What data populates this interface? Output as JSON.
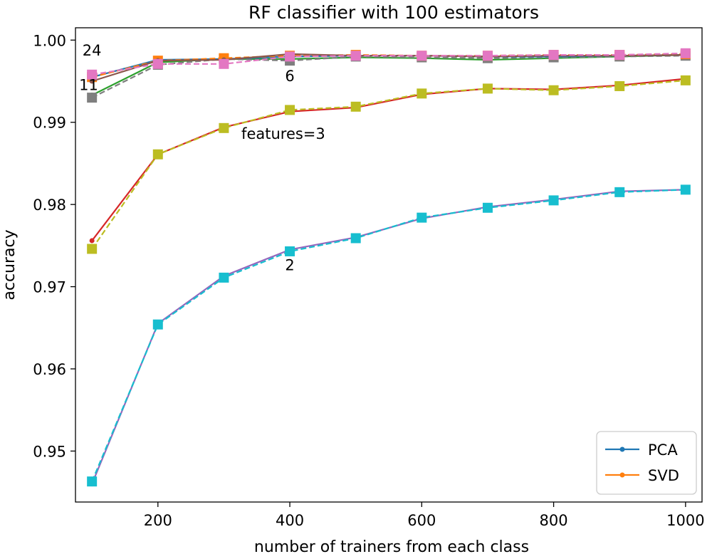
{
  "chart_data": {
    "type": "line",
    "title": "RF classifier with 100 estimators",
    "xlabel": "number of trainers from each class",
    "ylabel": "accuracy",
    "xlim": [
      75,
      1025
    ],
    "ylim": [
      0.9438,
      1.0015
    ],
    "x": [
      100,
      200,
      300,
      400,
      500,
      600,
      700,
      800,
      900,
      1000
    ],
    "xticks": [
      200,
      400,
      600,
      800,
      1000
    ],
    "yticks": [
      0.95,
      0.96,
      0.97,
      0.98,
      0.99,
      1.0
    ],
    "ytick_labels": [
      "0.95",
      "0.96",
      "0.97",
      "0.98",
      "0.99",
      "1.00"
    ],
    "legend": {
      "position": "lower-right",
      "entries": [
        {
          "label": "PCA",
          "color": "#1f77b4"
        },
        {
          "label": "SVD",
          "color": "#ff7f0e"
        }
      ]
    },
    "annotations": [
      {
        "text": "24",
        "x": 100,
        "y": 0.9981
      },
      {
        "text": "11",
        "x": 95,
        "y": 0.9939
      },
      {
        "text": "6",
        "x": 400,
        "y": 0.995
      },
      {
        "text": "features=3",
        "x": 400,
        "y": 0.988
      },
      {
        "text": "2",
        "x": 400,
        "y": 0.972
      }
    ],
    "series": [
      {
        "name": "PCA features=2",
        "method": "PCA",
        "color": "#9467bd",
        "dashed": false,
        "marker": "dot",
        "values": [
          0.946,
          0.9655,
          0.9713,
          0.9745,
          0.976,
          0.9783,
          0.9797,
          0.9806,
          0.9816,
          0.9818
        ]
      },
      {
        "name": "SVD features=2",
        "method": "SVD",
        "color": "#17becf",
        "dashed": true,
        "marker": "square",
        "values": [
          0.9463,
          0.9654,
          0.9711,
          0.9743,
          0.9759,
          0.9784,
          0.9796,
          0.9805,
          0.9815,
          0.9818
        ]
      },
      {
        "name": "PCA features=3",
        "method": "PCA",
        "color": "#d62728",
        "dashed": false,
        "marker": "dot",
        "values": [
          0.9756,
          0.9861,
          0.9894,
          0.9913,
          0.9918,
          0.9934,
          0.9941,
          0.994,
          0.9945,
          0.9953
        ]
      },
      {
        "name": "SVD features=3",
        "method": "SVD",
        "color": "#bcbd22",
        "dashed": true,
        "marker": "square",
        "values": [
          0.9746,
          0.9861,
          0.9893,
          0.9915,
          0.9919,
          0.9935,
          0.9941,
          0.9939,
          0.9944,
          0.9951
        ]
      },
      {
        "name": "PCA features=6",
        "method": "PCA",
        "color": "#2ca02c",
        "dashed": false,
        "marker": "dot",
        "values": [
          0.9933,
          0.9973,
          0.9977,
          0.9977,
          0.9979,
          0.9978,
          0.9976,
          0.9978,
          0.998,
          0.9982
        ]
      },
      {
        "name": "SVD features=6",
        "method": "SVD",
        "color": "#7f7f7f",
        "dashed": true,
        "marker": "square",
        "values": [
          0.993,
          0.997,
          0.9977,
          0.9975,
          0.998,
          0.9979,
          0.9978,
          0.9979,
          0.998,
          0.9981
        ]
      },
      {
        "name": "PCA features=24",
        "method": "PCA",
        "color": "#1f77b4",
        "dashed": false,
        "marker": "dot",
        "values": [
          0.9955,
          0.9976,
          0.9977,
          0.998,
          0.9981,
          0.9981,
          0.998,
          0.998,
          0.9981,
          0.9982
        ]
      },
      {
        "name": "SVD features=24",
        "method": "SVD",
        "color": "#ff7f0e",
        "dashed": true,
        "marker": "square",
        "values": [
          0.9955,
          0.9975,
          0.9978,
          0.9981,
          0.9982,
          0.9981,
          0.9981,
          0.9982,
          0.9982,
          0.9983
        ]
      },
      {
        "name": "PCA features=11",
        "method": "PCA",
        "color": "#8c564b",
        "dashed": false,
        "marker": "dot",
        "values": [
          0.995,
          0.9975,
          0.9976,
          0.9983,
          0.9981,
          0.9981,
          0.998,
          0.9981,
          0.9981,
          0.9982
        ]
      },
      {
        "name": "SVD features=11",
        "method": "SVD",
        "color": "#e377c2",
        "dashed": true,
        "marker": "square",
        "values": [
          0.9958,
          0.9971,
          0.9971,
          0.998,
          0.9981,
          0.9981,
          0.9981,
          0.9982,
          0.9982,
          0.9984
        ]
      }
    ]
  }
}
